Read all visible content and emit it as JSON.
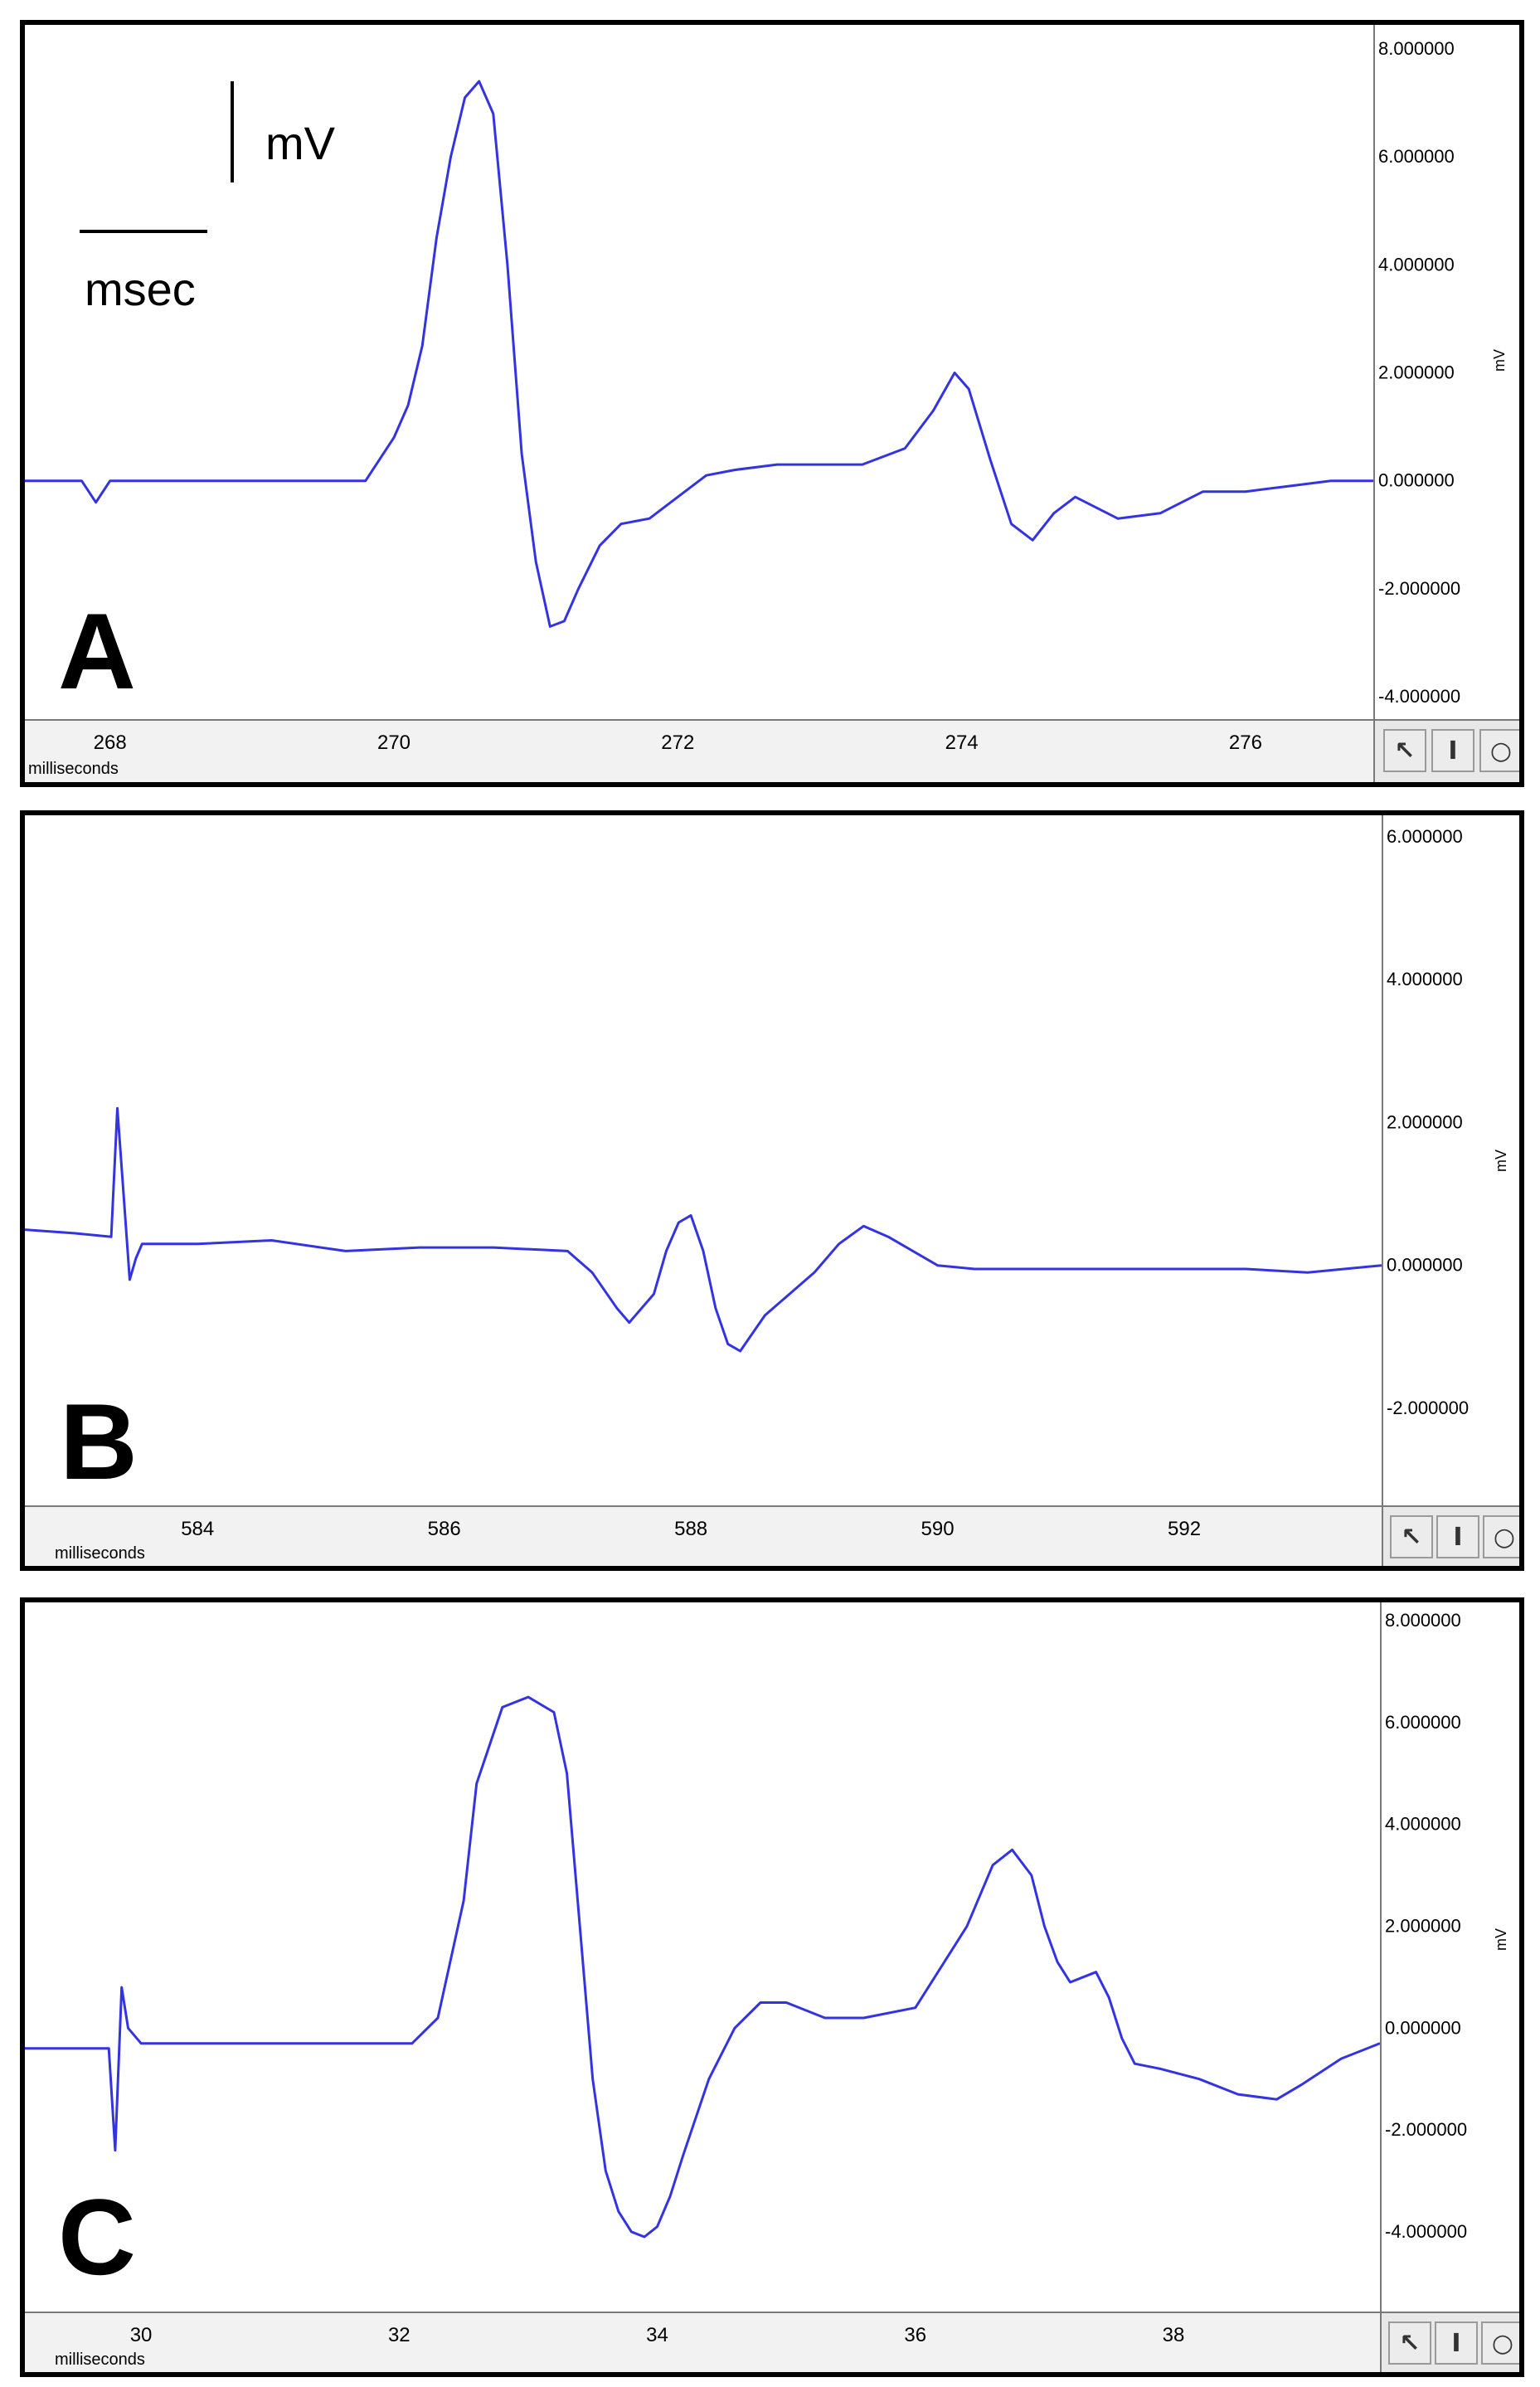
{
  "panels": [
    {
      "letter": "A",
      "xlabel": "milliseconds",
      "ylabel": "mV",
      "scale_bar": {
        "x_label": "msec",
        "y_label": "mV"
      },
      "x_ticks": [
        "268",
        "270",
        "272",
        "274",
        "276"
      ],
      "y_ticks": [
        "8.000000",
        "6.000000",
        "4.000000",
        "2.000000",
        "0.000000",
        "-2.000000",
        "-4.000000"
      ],
      "tools": [
        "arrow-cursor-icon",
        "text-cursor-icon",
        "zoom-icon"
      ]
    },
    {
      "letter": "B",
      "xlabel": "milliseconds",
      "ylabel": "mV",
      "x_ticks": [
        "584",
        "586",
        "588",
        "590",
        "592"
      ],
      "y_ticks": [
        "6.000000",
        "4.000000",
        "2.000000",
        "0.000000",
        "-2.000000"
      ],
      "tools": [
        "arrow-cursor-icon",
        "text-cursor-icon",
        "zoom-icon"
      ]
    },
    {
      "letter": "C",
      "xlabel": "milliseconds",
      "ylabel": "mV",
      "x_ticks": [
        "30",
        "32",
        "34",
        "36",
        "38"
      ],
      "y_ticks": [
        "8.000000",
        "6.000000",
        "4.000000",
        "2.000000",
        "0.000000",
        "-2.000000",
        "-4.000000"
      ],
      "tools": [
        "arrow-cursor-icon",
        "text-cursor-icon",
        "zoom-icon"
      ]
    }
  ],
  "chart_data": [
    {
      "type": "line",
      "xlabel": "milliseconds",
      "ylabel": "mV",
      "xlim": [
        267.4,
        276.9
      ],
      "ylim": [
        -4.0,
        8.0
      ],
      "color": "#3333e0",
      "x": [
        267.4,
        267.8,
        267.9,
        268.0,
        268.1,
        268.2,
        268.6,
        269.0,
        269.5,
        269.8,
        270.0,
        270.1,
        270.2,
        270.3,
        270.4,
        270.5,
        270.6,
        270.7,
        270.8,
        270.9,
        271.0,
        271.1,
        271.2,
        271.3,
        271.45,
        271.6,
        271.8,
        272.0,
        272.2,
        272.4,
        272.7,
        273.0,
        273.3,
        273.6,
        273.8,
        273.95,
        274.05,
        274.2,
        274.35,
        274.5,
        274.65,
        274.8,
        275.1,
        275.4,
        275.7,
        276.0,
        276.3,
        276.6,
        276.9
      ],
      "y": [
        0.0,
        0.0,
        -0.4,
        0.0,
        0.0,
        0.0,
        0.0,
        0.0,
        0.0,
        0.0,
        0.8,
        1.4,
        2.5,
        4.5,
        6.0,
        7.1,
        7.4,
        6.8,
        4.0,
        0.5,
        -1.5,
        -2.7,
        -2.6,
        -2.0,
        -1.2,
        -0.8,
        -0.7,
        -0.3,
        0.1,
        0.2,
        0.3,
        0.3,
        0.3,
        0.6,
        1.3,
        2.0,
        1.7,
        0.4,
        -0.8,
        -1.1,
        -0.6,
        -0.3,
        -0.7,
        -0.6,
        -0.2,
        -0.2,
        -0.1,
        0.0,
        0.0
      ],
      "scale_bar": {
        "x_label": "msec",
        "y_label": "mV"
      }
    },
    {
      "type": "line",
      "xlabel": "milliseconds",
      "ylabel": "mV",
      "xlim": [
        582.6,
        593.6
      ],
      "ylim": [
        -3.0,
        6.0
      ],
      "color": "#3333e0",
      "x": [
        582.6,
        583.0,
        583.3,
        583.35,
        583.4,
        583.45,
        583.5,
        583.55,
        583.6,
        584.0,
        584.6,
        585.2,
        585.8,
        586.4,
        587.0,
        587.2,
        587.4,
        587.5,
        587.7,
        587.8,
        587.9,
        588.0,
        588.1,
        588.2,
        588.3,
        588.4,
        588.6,
        588.8,
        589.0,
        589.2,
        589.4,
        589.6,
        590.0,
        590.3,
        590.6,
        591.0,
        591.5,
        592.0,
        592.5,
        593.0,
        593.6
      ],
      "y": [
        0.5,
        0.45,
        0.4,
        2.2,
        1.0,
        -0.2,
        0.1,
        0.3,
        0.3,
        0.3,
        0.35,
        0.2,
        0.25,
        0.25,
        0.2,
        -0.1,
        -0.6,
        -0.8,
        -0.4,
        0.2,
        0.6,
        0.7,
        0.2,
        -0.6,
        -1.1,
        -1.2,
        -0.7,
        -0.4,
        -0.1,
        0.3,
        0.55,
        0.4,
        0.0,
        -0.05,
        -0.05,
        -0.05,
        -0.05,
        -0.05,
        -0.05,
        -0.1,
        0.0
      ],
      "scale_bar": null
    },
    {
      "type": "line",
      "xlabel": "milliseconds",
      "ylabel": "mV",
      "xlim": [
        29.1,
        39.6
      ],
      "ylim": [
        -4.8,
        8.0
      ],
      "color": "#3333e0",
      "x": [
        29.1,
        29.6,
        29.75,
        29.8,
        29.85,
        29.9,
        30.0,
        30.5,
        31.5,
        32.1,
        32.3,
        32.5,
        32.6,
        32.8,
        33.0,
        33.2,
        33.3,
        33.4,
        33.5,
        33.6,
        33.7,
        33.8,
        33.9,
        34.0,
        34.1,
        34.2,
        34.4,
        34.6,
        34.8,
        35.0,
        35.3,
        35.6,
        36.0,
        36.2,
        36.4,
        36.6,
        36.75,
        36.9,
        37.0,
        37.1,
        37.2,
        37.3,
        37.4,
        37.5,
        37.6,
        37.7,
        37.9,
        38.2,
        38.5,
        38.8,
        39.0,
        39.3,
        39.6
      ],
      "y": [
        -0.4,
        -0.4,
        -0.4,
        -2.4,
        0.8,
        0.0,
        -0.3,
        -0.3,
        -0.3,
        -0.3,
        0.2,
        2.5,
        4.8,
        6.3,
        6.5,
        6.2,
        5.0,
        2.0,
        -1.0,
        -2.8,
        -3.6,
        -4.0,
        -4.1,
        -3.9,
        -3.3,
        -2.5,
        -1.0,
        0.0,
        0.5,
        0.5,
        0.2,
        0.2,
        0.4,
        1.2,
        2.0,
        3.2,
        3.5,
        3.0,
        2.0,
        1.3,
        0.9,
        1.0,
        1.1,
        0.6,
        -0.2,
        -0.7,
        -0.8,
        -1.0,
        -1.3,
        -1.4,
        -1.1,
        -0.6,
        -0.3
      ],
      "scale_bar": null
    }
  ]
}
